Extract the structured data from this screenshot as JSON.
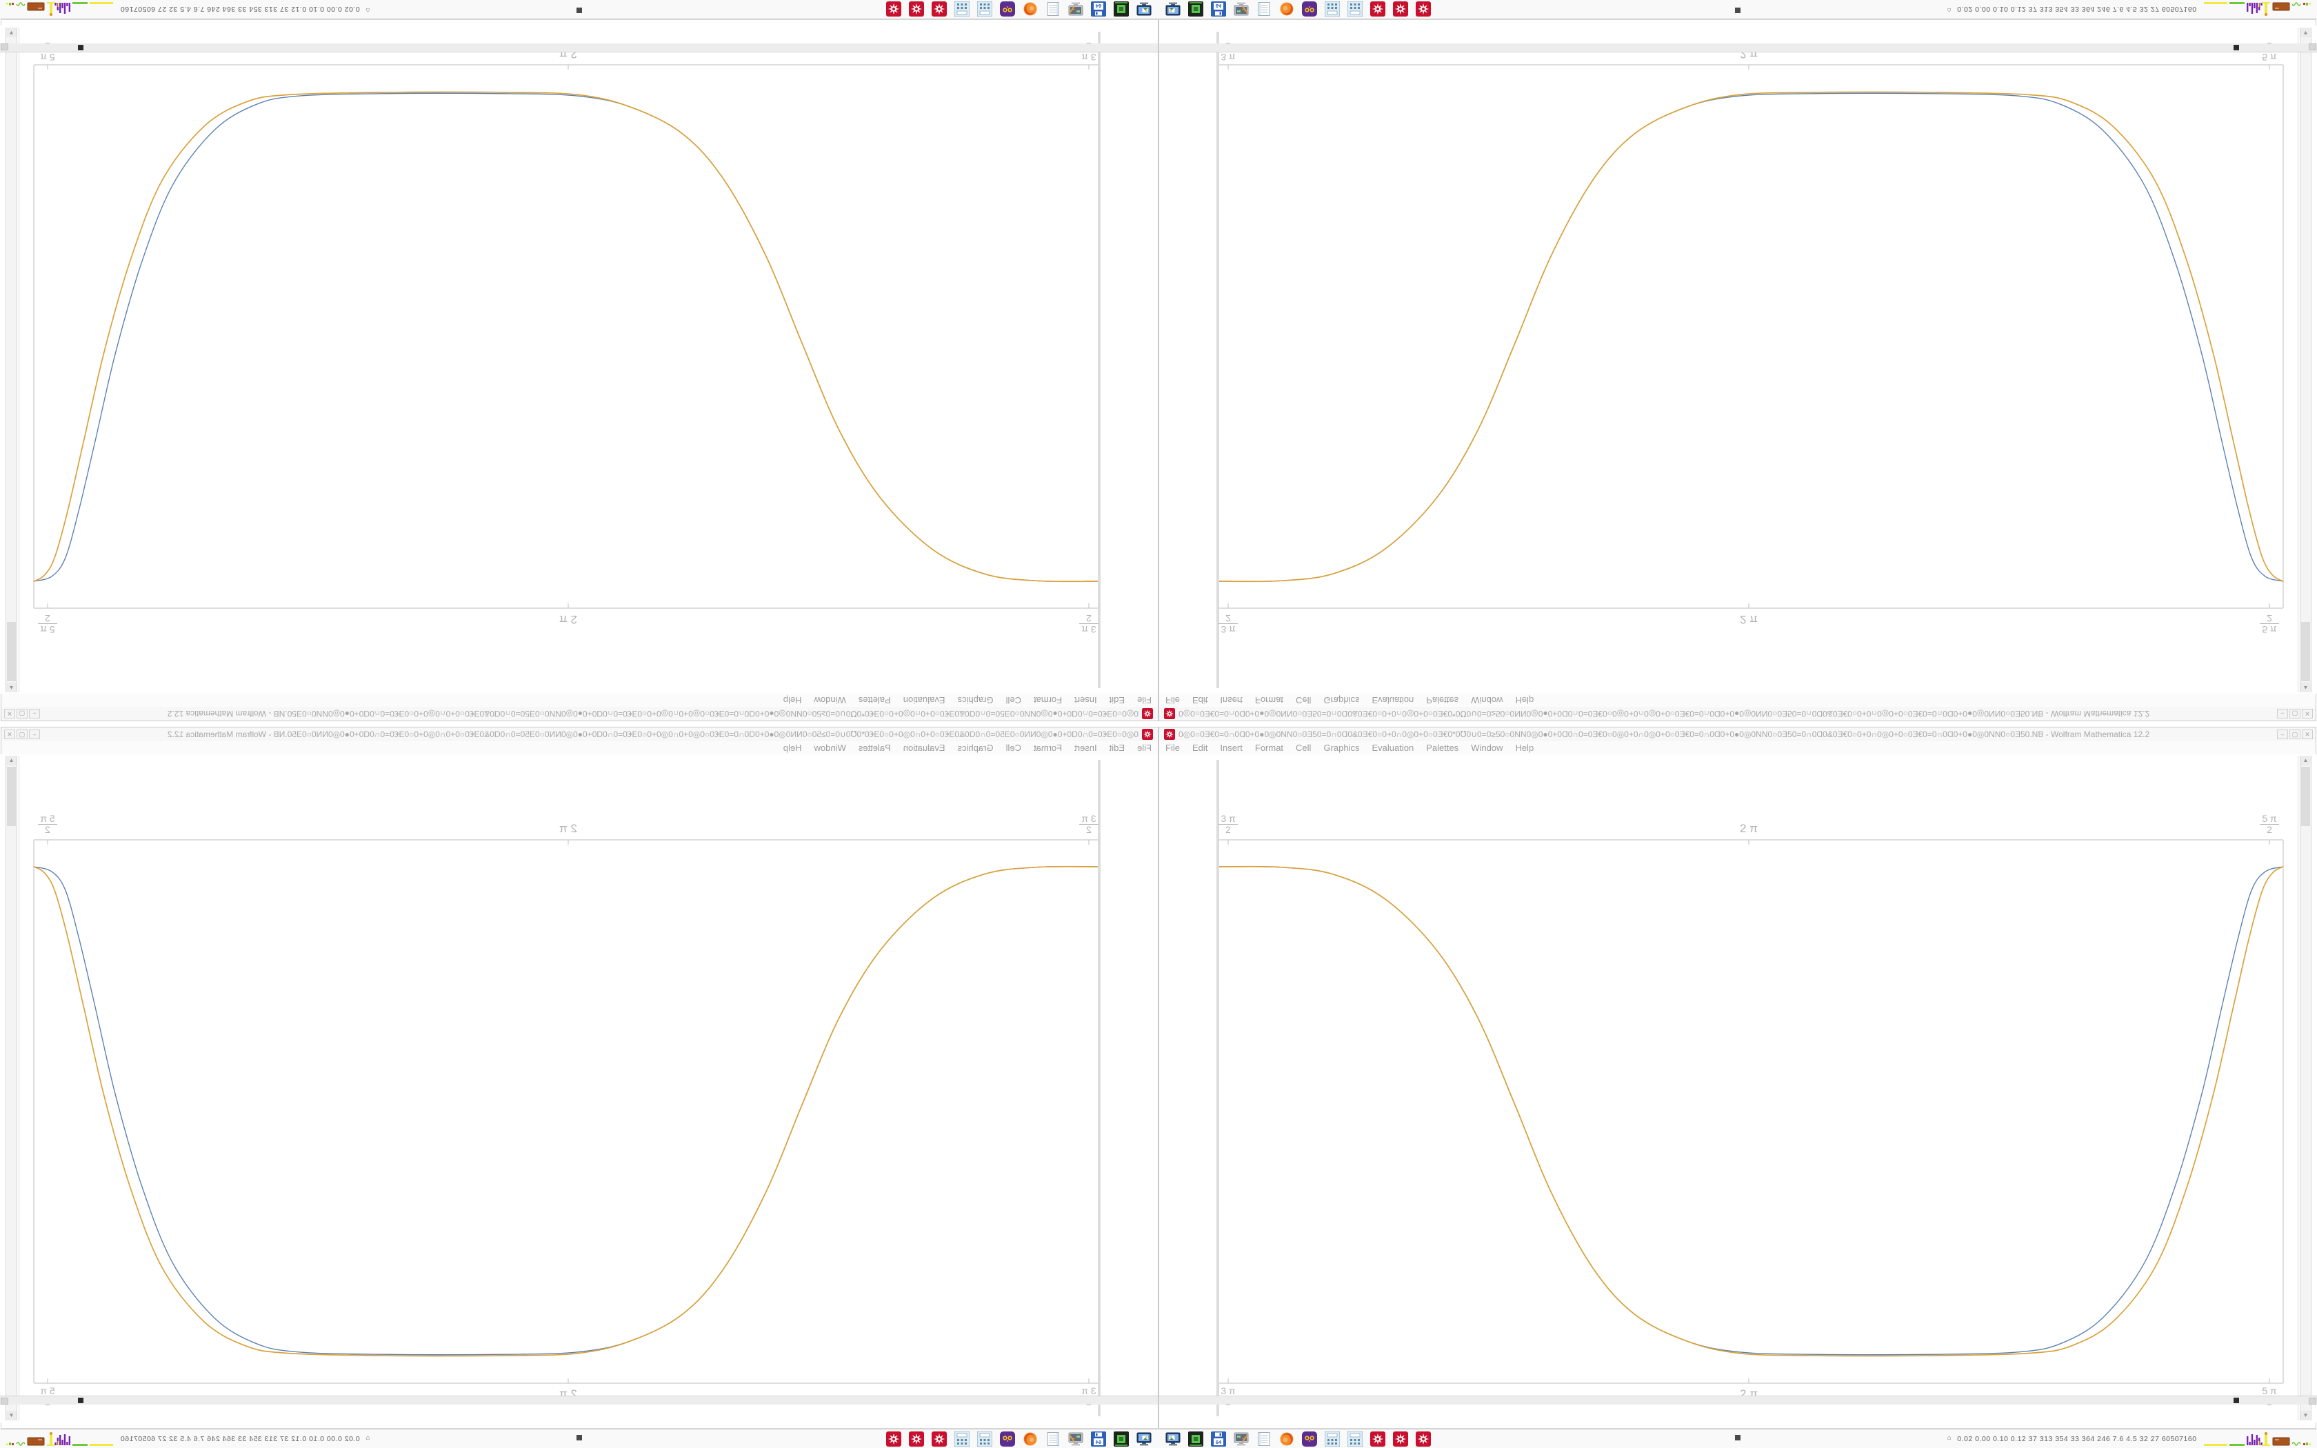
{
  "desktop": {
    "note": "single 1680x1050 screen mirrored into four quadrants (bottom-right original, bottom-left horizontal mirror, top-right vertical mirror, top-left 180-degree rotation)"
  },
  "window": {
    "title_text": "0◎0○0Ǝ€0=0∩0Ɑ0+0●0◎0NN0○0Ǝ50=0∩0Ɑ0&0Ǝ€0○0+0∩0◎0+0○0Ǝ€0*0℧0∪0=0≥50○0NN0◎0●0+0Ɑ0∩0=0Ǝ€0○0◎0+0∩0◎0+0○0Ǝ€0=0∩0Ɑ0+0●0◎0NN0○0Ǝ50=0∩0Ɑ0&0Ǝ€0○0+0∩0◎0+0○0Ǝ€0=0∩0Ɑ0+0●0◎0NN0○0Ǝ50.NB - Wolfram Mathematica 12.2",
    "app_name": "Wolfram Mathematica 12.2",
    "icon": "mathematica-spikey",
    "buttons": [
      {
        "name": "minimize",
        "glyph": "–"
      },
      {
        "name": "maximize",
        "glyph": "▢"
      },
      {
        "name": "close",
        "glyph": "✕"
      }
    ]
  },
  "menu": {
    "items": [
      "File",
      "Edit",
      "Insert",
      "Format",
      "Cell",
      "Graphics",
      "Evaluation",
      "Palettes",
      "Window",
      "Help"
    ]
  },
  "scrollbar": {
    "up_glyph": "▲",
    "down_glyph": "▼"
  },
  "taskbar": {
    "launchers": [
      {
        "name": "screenshot-monitor-icon",
        "kind": "monitor"
      },
      {
        "name": "green-terminal-icon",
        "kind": "greenbox"
      },
      {
        "name": "floppy-64-icon",
        "kind": "floppy",
        "label": "64"
      },
      {
        "name": "monitor-pen-icon",
        "kind": "monpen"
      },
      {
        "name": "notepad-icon",
        "kind": "notepad"
      },
      {
        "name": "firefox-icon",
        "kind": "firefox"
      },
      {
        "name": "owl-icon",
        "kind": "owl"
      },
      {
        "name": "calculator-icon",
        "kind": "calc"
      },
      {
        "name": "calculator-icon",
        "kind": "calc"
      },
      {
        "name": "mathematica-icon",
        "kind": "spikey"
      },
      {
        "name": "mathematica-icon",
        "kind": "spikey"
      },
      {
        "name": "mathematica-icon",
        "kind": "spikey"
      }
    ],
    "sysmon": {
      "icon": "⌂",
      "values": [
        "0.02",
        "0.00",
        "0.10",
        "0.12",
        "37",
        "313",
        "354",
        "33",
        "364",
        "246",
        "7.6",
        "4.5",
        "32",
        "27",
        "60507160"
      ],
      "colors": {
        "yellow": "#f0e93e",
        "green": "#6fc83c",
        "purple": "#7a1fb8",
        "brown": "#a8541c",
        "red": "#cc3b2a"
      }
    }
  },
  "chart_data": {
    "type": "line",
    "title": "",
    "xlabel": "",
    "ylabel": "",
    "x_unit": "multiples of pi (radians)",
    "xlim_pi": [
      1.4914,
      2.513
    ],
    "ylim": [
      -1.113,
      1.113
    ],
    "frame": true,
    "grid": false,
    "legend_position": "none",
    "x_ticks": [
      {
        "pos_pi": 1.5,
        "frac": true,
        "num": "3 π",
        "den": "2"
      },
      {
        "pos_pi": 2.0,
        "frac": false,
        "label": "2 π"
      },
      {
        "pos_pi": 2.5,
        "frac": true,
        "num": "5 π",
        "den": "2"
      }
    ],
    "tick_sides": [
      "top",
      "bottom"
    ],
    "series": [
      {
        "name": "series-blue",
        "color": "#5e81b5",
        "stroke_width": 1.4,
        "x_pi": [
          1.4914,
          1.55,
          1.6,
          1.65,
          1.7,
          1.74,
          1.776,
          1.81,
          1.85,
          1.89,
          1.94,
          1.99,
          2.06,
          2.18,
          2.26,
          2.3,
          2.34,
          2.38,
          2.41,
          2.435,
          2.455,
          2.47,
          2.483,
          2.496,
          2.513
        ],
        "y": [
          1,
          0.998,
          0.97,
          0.87,
          0.66,
          0.38,
          0.02,
          -0.33,
          -0.64,
          -0.83,
          -0.94,
          -0.985,
          -0.995,
          -0.995,
          -0.985,
          -0.95,
          -0.845,
          -0.62,
          -0.3,
          0.07,
          0.44,
          0.71,
          0.905,
          0.98,
          1.0
        ]
      },
      {
        "name": "series-gold",
        "color": "#daa23a",
        "stroke_width": 1.7,
        "x_pi": [
          1.4914,
          1.55,
          1.6,
          1.65,
          1.7,
          1.74,
          1.776,
          1.81,
          1.85,
          1.89,
          1.94,
          1.99,
          2.06,
          2.18,
          2.27,
          2.31,
          2.35,
          2.39,
          2.42,
          2.445,
          2.465,
          2.48,
          2.493,
          2.503,
          2.513
        ],
        "y": [
          1,
          0.998,
          0.97,
          0.87,
          0.66,
          0.38,
          0.02,
          -0.33,
          -0.64,
          -0.83,
          -0.94,
          -0.99,
          -1,
          -1,
          -0.99,
          -0.96,
          -0.86,
          -0.64,
          -0.32,
          0.05,
          0.42,
          0.7,
          0.9,
          0.975,
          1.0
        ]
      }
    ]
  }
}
